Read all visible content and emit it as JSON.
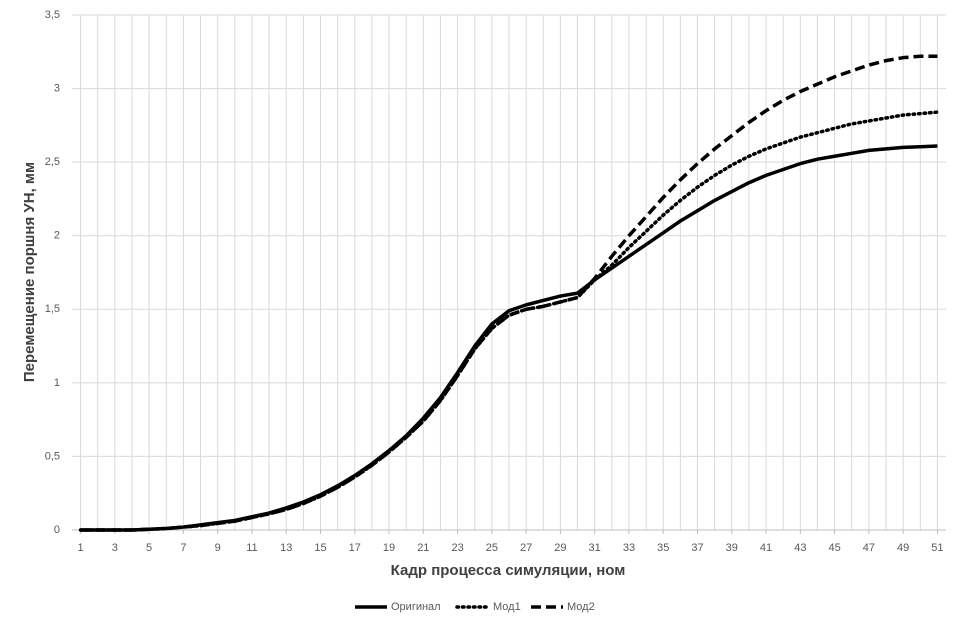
{
  "chart_data": {
    "type": "line",
    "x_label": "Кадр процесса симуляции, ном",
    "y_label": "Перемещение поршня УН, мм",
    "x": [
      1,
      2,
      3,
      4,
      5,
      6,
      7,
      8,
      9,
      10,
      11,
      12,
      13,
      14,
      15,
      16,
      17,
      18,
      19,
      20,
      21,
      22,
      23,
      24,
      25,
      26,
      27,
      28,
      29,
      30,
      31,
      32,
      33,
      34,
      35,
      36,
      37,
      38,
      39,
      40,
      41,
      42,
      43,
      44,
      45,
      46,
      47,
      48,
      49,
      50,
      51
    ],
    "xlim": [
      0.5,
      51.5
    ],
    "xticks": [
      1,
      3,
      5,
      7,
      9,
      11,
      13,
      15,
      17,
      19,
      21,
      23,
      25,
      27,
      29,
      31,
      33,
      35,
      37,
      39,
      41,
      43,
      45,
      47,
      49,
      51
    ],
    "ylim": [
      0,
      3.5
    ],
    "yticks": [
      0,
      {
        "value": 0.5,
        "label": "0,5"
      },
      1,
      {
        "value": 1.5,
        "label": "1,5"
      },
      2,
      {
        "value": 2.5,
        "label": "2,5"
      },
      3,
      {
        "value": 3.5,
        "label": "3,5"
      }
    ],
    "grid": true,
    "legend": "bottom",
    "series": [
      {
        "name": "Оригинал",
        "color": "#000000",
        "style": "solid",
        "values": [
          0,
          0,
          0,
          0,
          0.005,
          0.01,
          0.02,
          0.035,
          0.05,
          0.065,
          0.09,
          0.115,
          0.15,
          0.19,
          0.24,
          0.3,
          0.37,
          0.45,
          0.54,
          0.64,
          0.76,
          0.9,
          1.07,
          1.25,
          1.4,
          1.49,
          1.53,
          1.56,
          1.59,
          1.61,
          1.7,
          1.78,
          1.86,
          1.94,
          2.02,
          2.1,
          2.17,
          2.24,
          2.3,
          2.36,
          2.41,
          2.45,
          2.49,
          2.52,
          2.54,
          2.56,
          2.58,
          2.59,
          2.6,
          2.605,
          2.61
        ]
      },
      {
        "name": "Мод1",
        "color": "#000000",
        "style": "dotted",
        "values": [
          0,
          0,
          0,
          0,
          0.005,
          0.01,
          0.02,
          0.03,
          0.045,
          0.06,
          0.085,
          0.11,
          0.14,
          0.18,
          0.23,
          0.29,
          0.36,
          0.44,
          0.53,
          0.63,
          0.74,
          0.88,
          1.05,
          1.23,
          1.37,
          1.46,
          1.5,
          1.52,
          1.55,
          1.58,
          1.7,
          1.8,
          1.92,
          2.03,
          2.14,
          2.24,
          2.33,
          2.41,
          2.48,
          2.54,
          2.59,
          2.63,
          2.67,
          2.7,
          2.73,
          2.76,
          2.78,
          2.8,
          2.82,
          2.83,
          2.84
        ]
      },
      {
        "name": "Мод2",
        "color": "#000000",
        "style": "dashed",
        "values": [
          0,
          0,
          0,
          0,
          0.005,
          0.01,
          0.02,
          0.03,
          0.045,
          0.06,
          0.085,
          0.11,
          0.14,
          0.18,
          0.23,
          0.29,
          0.36,
          0.44,
          0.53,
          0.63,
          0.74,
          0.88,
          1.05,
          1.23,
          1.37,
          1.46,
          1.5,
          1.52,
          1.55,
          1.58,
          1.71,
          1.86,
          2.0,
          2.13,
          2.26,
          2.38,
          2.49,
          2.59,
          2.68,
          2.77,
          2.85,
          2.92,
          2.98,
          3.03,
          3.08,
          3.12,
          3.16,
          3.19,
          3.21,
          3.22,
          3.22
        ]
      }
    ]
  }
}
